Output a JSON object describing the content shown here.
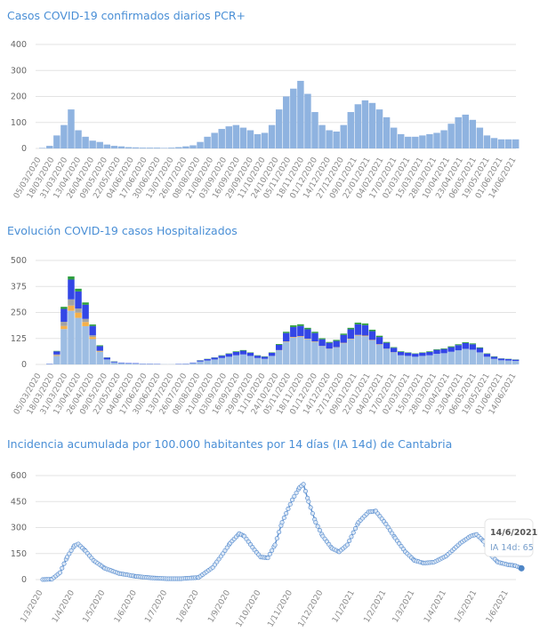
{
  "chart_data": [
    {
      "type": "bar",
      "title": "Casos COVID-19 confirmados diarios PCR+",
      "xlabel": "",
      "ylabel": "",
      "ylim": [
        0,
        400
      ],
      "yticks": [
        0,
        100,
        200,
        300,
        400
      ],
      "grid": true,
      "x_start": "05/03/2020",
      "x_end": "14/06/2021",
      "bar_color": "#8fb3e0",
      "xtick_labels": [
        "05/03/2020",
        "18/03/2020",
        "31/03/2020",
        "13/04/2020",
        "26/04/2020",
        "09/05/2020",
        "22/05/2020",
        "04/06/2020",
        "17/06/2020",
        "30/06/2020",
        "13/07/2020",
        "26/07/2020",
        "08/08/2020",
        "21/08/2020",
        "03/09/2020",
        "16/09/2020",
        "29/09/2020",
        "11/10/2020",
        "24/10/2020",
        "05/11/2020",
        "18/11/2020",
        "01/12/2020",
        "14/12/2020",
        "27/12/2020",
        "09/01/2021",
        "22/01/2021",
        "04/02/2021",
        "17/02/2021",
        "02/03/2021",
        "15/03/2021",
        "28/03/2021",
        "10/04/2021",
        "23/04/2021",
        "06/05/2021",
        "19/05/2021",
        "01/06/2021",
        "14/06/2021"
      ],
      "values": [
        2,
        10,
        50,
        90,
        150,
        70,
        45,
        30,
        25,
        15,
        10,
        8,
        5,
        4,
        3,
        3,
        3,
        2,
        3,
        5,
        8,
        12,
        25,
        45,
        60,
        75,
        85,
        90,
        80,
        70,
        55,
        60,
        90,
        150,
        200,
        230,
        260,
        210,
        140,
        90,
        70,
        65,
        90,
        140,
        170,
        185,
        175,
        150,
        120,
        80,
        55,
        45,
        45,
        50,
        55,
        60,
        70,
        95,
        120,
        130,
        110,
        80,
        50,
        40,
        35,
        35,
        35
      ]
    },
    {
      "type": "bar",
      "stacked": true,
      "title": "Evolución COVID-19 casos  Hospitalizados",
      "xlabel": "",
      "ylabel": "",
      "ylim": [
        0,
        500
      ],
      "yticks": [
        0,
        125,
        250,
        375,
        500
      ],
      "grid": true,
      "x_start": "05/03/2020",
      "x_end": "14/06/2021",
      "xtick_labels": [
        "05/03/2020",
        "18/03/2020",
        "31/03/2020",
        "13/04/2020",
        "26/04/2020",
        "09/05/2020",
        "22/05/2020",
        "04/06/2020",
        "17/06/2020",
        "30/06/2020",
        "13/07/2020",
        "26/07/2020",
        "08/08/2020",
        "21/08/2020",
        "03/09/2020",
        "16/09/2020",
        "29/09/2020",
        "11/10/2020",
        "24/10/2020",
        "05/11/2020",
        "18/11/2020",
        "01/12/2020",
        "14/12/2020",
        "27/12/2020",
        "09/01/2021",
        "22/01/2021",
        "04/02/2021",
        "17/02/2021",
        "02/03/2021",
        "15/03/2021",
        "28/03/2021",
        "10/04/2021",
        "23/04/2021",
        "06/05/2021",
        "19/05/2021",
        "01/06/2021",
        "14/06/2021"
      ],
      "series": [
        {
          "color": "#9dbde3",
          "values": [
            0,
            3,
            41,
            170,
            258,
            224,
            184,
            122,
            61,
            24,
            10,
            7,
            5,
            4,
            3,
            3,
            2,
            1,
            1,
            2,
            3,
            7,
            14,
            19,
            24,
            31,
            37,
            44,
            48,
            41,
            31,
            27,
            41,
            68,
            109,
            129,
            133,
            122,
            109,
            88,
            75,
            82,
            102,
            122,
            139,
            136,
            116,
            95,
            75,
            58,
            44,
            41,
            37,
            41,
            44,
            51,
            54,
            61,
            68,
            75,
            71,
            58,
            37,
            27,
            20,
            19,
            17
          ]
        },
        {
          "color": "#f5b04a",
          "values": [
            0,
            0,
            3,
            15,
            25,
            25,
            20,
            10,
            3,
            0,
            0,
            0,
            0,
            0,
            0,
            0,
            0,
            0,
            0,
            0,
            0,
            0,
            0,
            0,
            0,
            0,
            0,
            0,
            0,
            0,
            0,
            0,
            0,
            1,
            2,
            3,
            3,
            2,
            2,
            1,
            1,
            1,
            2,
            2,
            3,
            3,
            2,
            2,
            1,
            1,
            0,
            0,
            0,
            0,
            0,
            0,
            0,
            0,
            0,
            0,
            0,
            0,
            0,
            0,
            0,
            0,
            0
          ]
        },
        {
          "color": "#a3a3a3",
          "values": [
            0,
            0,
            4,
            20,
            30,
            20,
            15,
            8,
            2,
            0,
            0,
            0,
            0,
            0,
            0,
            0,
            0,
            0,
            0,
            0,
            0,
            0,
            0,
            0,
            0,
            0,
            0,
            0,
            0,
            0,
            0,
            0,
            0,
            0,
            0,
            0,
            0,
            0,
            0,
            0,
            0,
            0,
            0,
            0,
            0,
            0,
            0,
            0,
            0,
            0,
            0,
            0,
            0,
            0,
            0,
            0,
            0,
            0,
            0,
            0,
            0,
            0,
            0,
            0,
            0,
            0,
            0
          ]
        },
        {
          "color": "#3346e6",
          "values": [
            0,
            1,
            15,
            62,
            95,
            82,
            68,
            45,
            22,
            9,
            4,
            2,
            2,
            2,
            1,
            1,
            1,
            0,
            0,
            1,
            1,
            2,
            5,
            7,
            9,
            11,
            14,
            16,
            18,
            15,
            11,
            10,
            15,
            25,
            40,
            48,
            49,
            45,
            40,
            32,
            28,
            30,
            38,
            45,
            51,
            50,
            42,
            35,
            28,
            21,
            16,
            15,
            14,
            15,
            16,
            19,
            20,
            22,
            25,
            28,
            26,
            21,
            14,
            10,
            8,
            7,
            6
          ]
        },
        {
          "color": "#2e9e3e",
          "values": [
            0,
            0,
            2,
            10,
            15,
            13,
            11,
            7,
            4,
            1,
            1,
            0,
            0,
            0,
            0,
            0,
            0,
            0,
            0,
            0,
            0,
            0,
            1,
            1,
            1,
            2,
            2,
            3,
            3,
            2,
            2,
            2,
            2,
            4,
            6,
            8,
            8,
            7,
            6,
            5,
            4,
            5,
            6,
            7,
            8,
            8,
            7,
            6,
            4,
            3,
            3,
            2,
            2,
            2,
            3,
            3,
            3,
            4,
            4,
            4,
            4,
            3,
            2,
            2,
            1,
            1,
            1
          ]
        }
      ]
    },
    {
      "type": "line",
      "title": "Incidencia acumulada por 100.000 habitantes por 14 días (IA 14d) de Cantabria",
      "xlabel": "",
      "ylabel": "",
      "ylim": [
        0,
        600
      ],
      "yticks": [
        0,
        150,
        300,
        450,
        600
      ],
      "grid": true,
      "color": "#5b8fd0",
      "xtick_labels": [
        "1/3/2020",
        "1/4/2020",
        "1/5/2020",
        "1/6/2020",
        "1/7/2020",
        "1/8/2020",
        "1/9/2020",
        "1/10/2020",
        "1/11/2020",
        "1/12/2020",
        "1/1/2021",
        "1/2/2021",
        "1/3/2021",
        "1/4/2021",
        "1/5/2021",
        "1/6/2021"
      ],
      "points": [
        [
          "1/3/2020",
          0
        ],
        [
          "10/3/2020",
          2
        ],
        [
          "18/3/2020",
          40
        ],
        [
          "25/3/2020",
          130
        ],
        [
          "1/4/2020",
          195
        ],
        [
          "5/4/2020",
          205
        ],
        [
          "12/4/2020",
          165
        ],
        [
          "20/4/2020",
          110
        ],
        [
          "1/5/2020",
          65
        ],
        [
          "15/5/2020",
          35
        ],
        [
          "1/6/2020",
          18
        ],
        [
          "15/6/2020",
          10
        ],
        [
          "1/7/2020",
          5
        ],
        [
          "15/7/2020",
          5
        ],
        [
          "1/8/2020",
          12
        ],
        [
          "15/8/2020",
          70
        ],
        [
          "25/8/2020",
          150
        ],
        [
          "1/9/2020",
          210
        ],
        [
          "10/9/2020",
          265
        ],
        [
          "15/9/2020",
          250
        ],
        [
          "25/9/2020",
          170
        ],
        [
          "1/10/2020",
          130
        ],
        [
          "8/10/2020",
          125
        ],
        [
          "15/10/2020",
          200
        ],
        [
          "22/10/2020",
          330
        ],
        [
          "1/11/2020",
          460
        ],
        [
          "8/11/2020",
          530
        ],
        [
          "12/11/2020",
          550
        ],
        [
          "17/11/2020",
          450
        ],
        [
          "24/11/2020",
          330
        ],
        [
          "1/12/2020",
          250
        ],
        [
          "10/12/2020",
          180
        ],
        [
          "17/12/2020",
          160
        ],
        [
          "25/12/2020",
          200
        ],
        [
          "5/1/2021",
          330
        ],
        [
          "15/1/2021",
          390
        ],
        [
          "22/1/2021",
          395
        ],
        [
          "1/2/2021",
          320
        ],
        [
          "10/2/2021",
          240
        ],
        [
          "20/2/2021",
          160
        ],
        [
          "1/3/2021",
          110
        ],
        [
          "10/3/2021",
          95
        ],
        [
          "20/3/2021",
          100
        ],
        [
          "1/4/2021",
          135
        ],
        [
          "15/4/2021",
          210
        ],
        [
          "25/4/2021",
          250
        ],
        [
          "1/5/2021",
          260
        ],
        [
          "8/5/2021",
          220
        ],
        [
          "15/5/2021",
          140
        ],
        [
          "22/5/2021",
          100
        ],
        [
          "1/6/2021",
          85
        ],
        [
          "8/6/2021",
          80
        ],
        [
          "14/6/2021",
          65
        ]
      ],
      "tooltip": {
        "date": "14/6/2021",
        "label": "IA 14d: 65"
      }
    }
  ]
}
